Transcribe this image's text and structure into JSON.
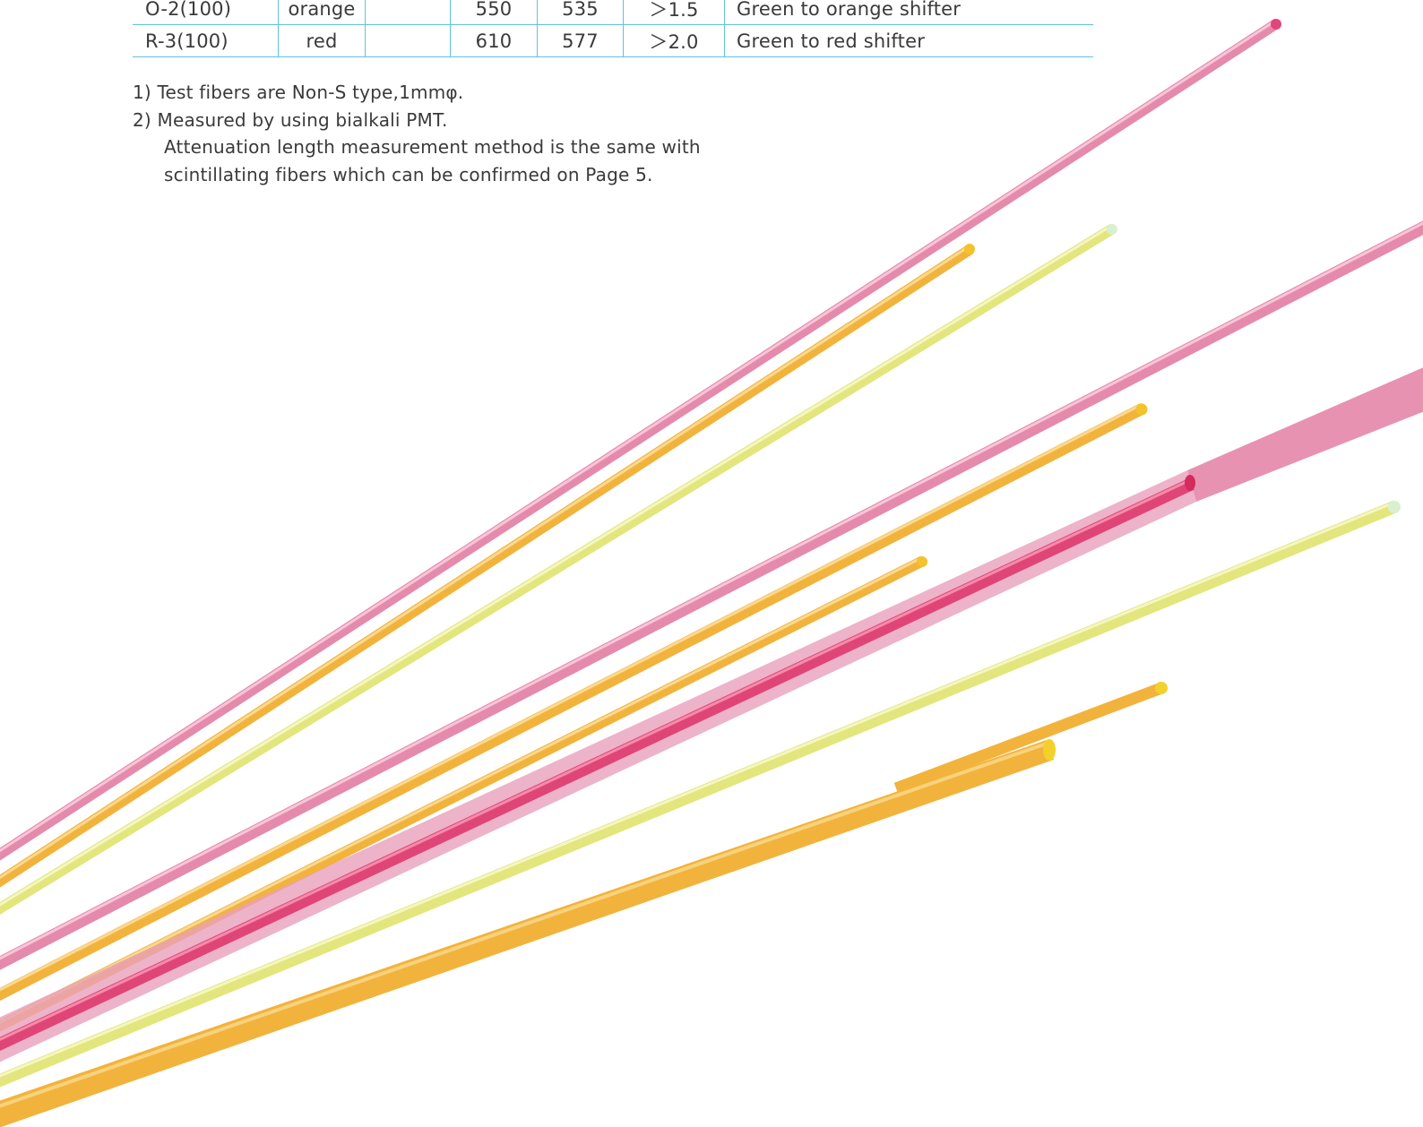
{
  "table": {
    "rows": [
      {
        "name": "O-2(100)",
        "color": "orange",
        "blank": "",
        "emission": "550",
        "absorption": "535",
        "attenuation": "＞1.5",
        "use": "Green to orange shifter"
      },
      {
        "name": "R-3(100)",
        "color": "red",
        "blank": "",
        "emission": "610",
        "absorption": "577",
        "attenuation": "＞2.0",
        "use": "Green to red shifter"
      }
    ]
  },
  "notes": {
    "note1": "1) Test fibers are Non-S type,1mmφ.",
    "note2": "2) Measured by using bialkali PMT.",
    "note2_line2": "Attenuation length measurement method is the same with",
    "note2_line3": "scintillating fibers which can be confirmed on Page 5."
  },
  "fiber_colors": {
    "pink": "#e58aaa",
    "magenta": "#e04577",
    "orange": "#f2b33c",
    "yellow": "#e4e87a"
  }
}
